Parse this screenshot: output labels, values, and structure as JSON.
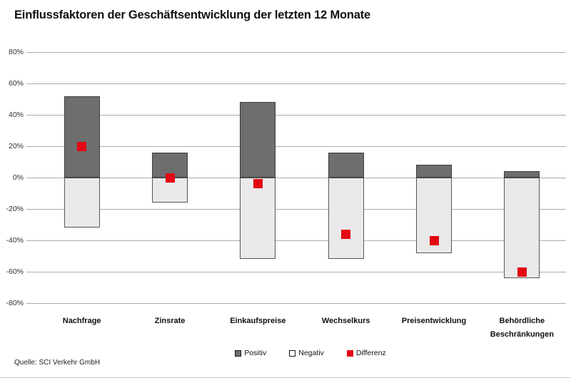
{
  "title": "Einflussfaktoren der Geschäftsentwicklung der letzten 12 Monate",
  "source": "Quelle: SCI Verkehr GmbH",
  "colors": {
    "positive_fill": "#6e6e6e",
    "positive_border": "#3d3d3d",
    "negative_fill": "#e9e9e9",
    "negative_border": "#565656",
    "difference_red": "#e30613",
    "gridline": "#ababab"
  },
  "chart_data": {
    "type": "bar",
    "subtype": "diverging-stacked-with-difference-marker",
    "categories": [
      "Nachfrage",
      "Zinsrate",
      "Einkaufspreise",
      "Wechselkurs",
      "Preisentwicklung",
      "Behördliche Beschränkungen"
    ],
    "series": [
      {
        "name": "Positiv",
        "values": [
          52,
          16,
          48,
          16,
          8,
          4
        ],
        "color": "#6e6e6e",
        "style": "bar"
      },
      {
        "name": "Negativ",
        "values": [
          -32,
          -16,
          -52,
          -52,
          -48,
          -64
        ],
        "color": "#e9e9e9",
        "style": "bar"
      },
      {
        "name": "Differenz",
        "values": [
          20,
          0,
          -4,
          -36,
          -40,
          -60
        ],
        "color": "#e30613",
        "style": "square-marker"
      }
    ],
    "title": "Einflussfaktoren der Geschäftsentwicklung der letzten 12 Monate",
    "xlabel": "",
    "ylabel": "",
    "ylim": [
      -80,
      80
    ],
    "ytick_step": 20,
    "ytick_format": "percent",
    "grid": true,
    "legend_position": "bottom",
    "legend_labels": [
      "Positiv",
      "Negativ",
      "Differenz"
    ]
  }
}
